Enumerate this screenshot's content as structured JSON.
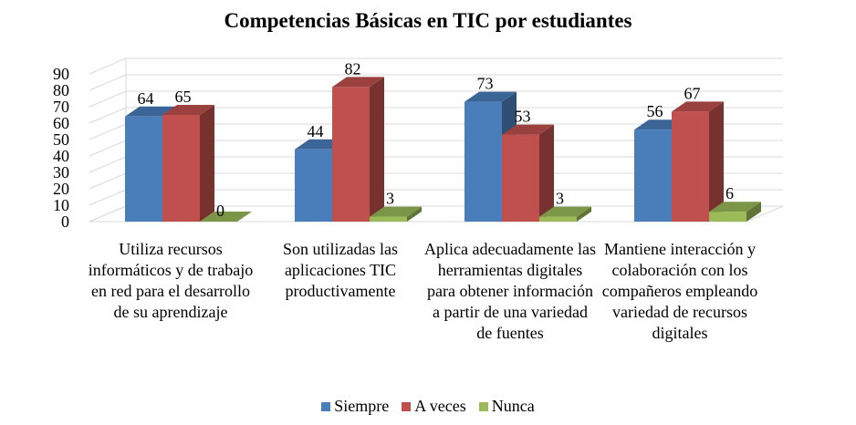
{
  "chart_data": {
    "type": "bar",
    "style": "3d-clustered-column",
    "title": "Competencias Básicas en TIC por estudiantes",
    "xlabel": "",
    "ylabel": "",
    "ylim": [
      0,
      90
    ],
    "yticks": [
      "0",
      "10",
      "20",
      "30",
      "40",
      "50",
      "60",
      "70",
      "80",
      "90"
    ],
    "grid": true,
    "legend_position": "bottom",
    "categories": [
      "Utiliza recursos informáticos y de trabajo en red para el desarrollo de su aprendizaje",
      "Son utilizadas las aplicaciones TIC productivamente",
      "Aplica adecuadamente las herramientas digitales para obtener información a partir de una variedad de fuentes",
      "Mantiene interacción y colaboración con los compañeros empleando variedad de recursos digitales"
    ],
    "series": [
      {
        "name": "Siempre",
        "values": [
          64,
          44,
          73,
          56
        ],
        "color": "#4A7EBB"
      },
      {
        "name": "A veces",
        "values": [
          65,
          82,
          53,
          67
        ],
        "color": "#C0504D"
      },
      {
        "name": "Nunca",
        "values": [
          0,
          3,
          3,
          6
        ],
        "color": "#9BBB59"
      }
    ]
  }
}
